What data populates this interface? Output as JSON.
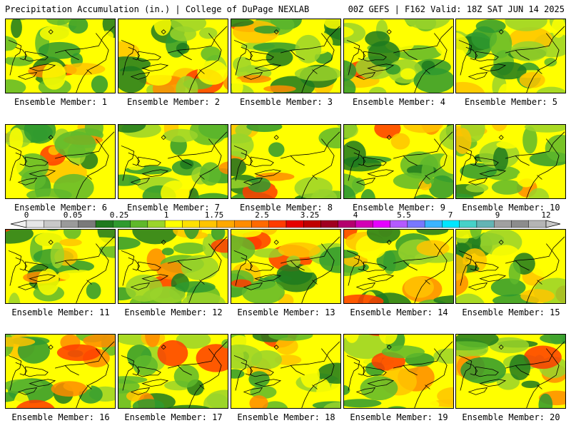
{
  "header": {
    "left": "Precipitation Accumulation (in.) | College of DuPage NEXLAB",
    "right": "00Z GEFS | F162 Valid: 18Z SAT JUN 14 2025"
  },
  "panels": [
    {
      "caption": "Ensemble Member: 1"
    },
    {
      "caption": "Ensemble Member: 2"
    },
    {
      "caption": "Ensemble Member: 3"
    },
    {
      "caption": "Ensemble Member: 4"
    },
    {
      "caption": "Ensemble Member: 5"
    },
    {
      "caption": "Ensemble Member: 6"
    },
    {
      "caption": "Ensemble Member: 7"
    },
    {
      "caption": "Ensemble Member: 8"
    },
    {
      "caption": "Ensemble Member: 9"
    },
    {
      "caption": "Ensemble Member: 10"
    },
    {
      "caption": "Ensemble Member: 11"
    },
    {
      "caption": "Ensemble Member: 12"
    },
    {
      "caption": "Ensemble Member: 13"
    },
    {
      "caption": "Ensemble Member: 14"
    },
    {
      "caption": "Ensemble Member: 15"
    },
    {
      "caption": "Ensemble Member: 16"
    },
    {
      "caption": "Ensemble Member: 17"
    },
    {
      "caption": "Ensemble Member: 18"
    },
    {
      "caption": "Ensemble Member: 19"
    },
    {
      "caption": "Ensemble Member: 20"
    }
  ],
  "colorbar": {
    "labels": [
      "0",
      "0.05",
      "0.25",
      "1",
      "1.75",
      "2.5",
      "3.25",
      "4",
      "5.5",
      "7",
      "9",
      "12"
    ],
    "colors": [
      "#e6e6e6",
      "#c8c8c8",
      "#9a9a9a",
      "#7a7a7a",
      "#1f7a1f",
      "#2f9a2f",
      "#5fb82b",
      "#9ad42a",
      "#ffff00",
      "#ffe000",
      "#ffc400",
      "#ffa800",
      "#ff8c00",
      "#ff6a00",
      "#ff3c00",
      "#e60000",
      "#c00000",
      "#a00020",
      "#b4006e",
      "#d200b4",
      "#e600ff",
      "#b45aff",
      "#7878ff",
      "#3cb4ff",
      "#00e6ff",
      "#46d2c8",
      "#64b4b4",
      "#a0a0a0",
      "#8c8c8c",
      "#b4b4b4"
    ]
  }
}
